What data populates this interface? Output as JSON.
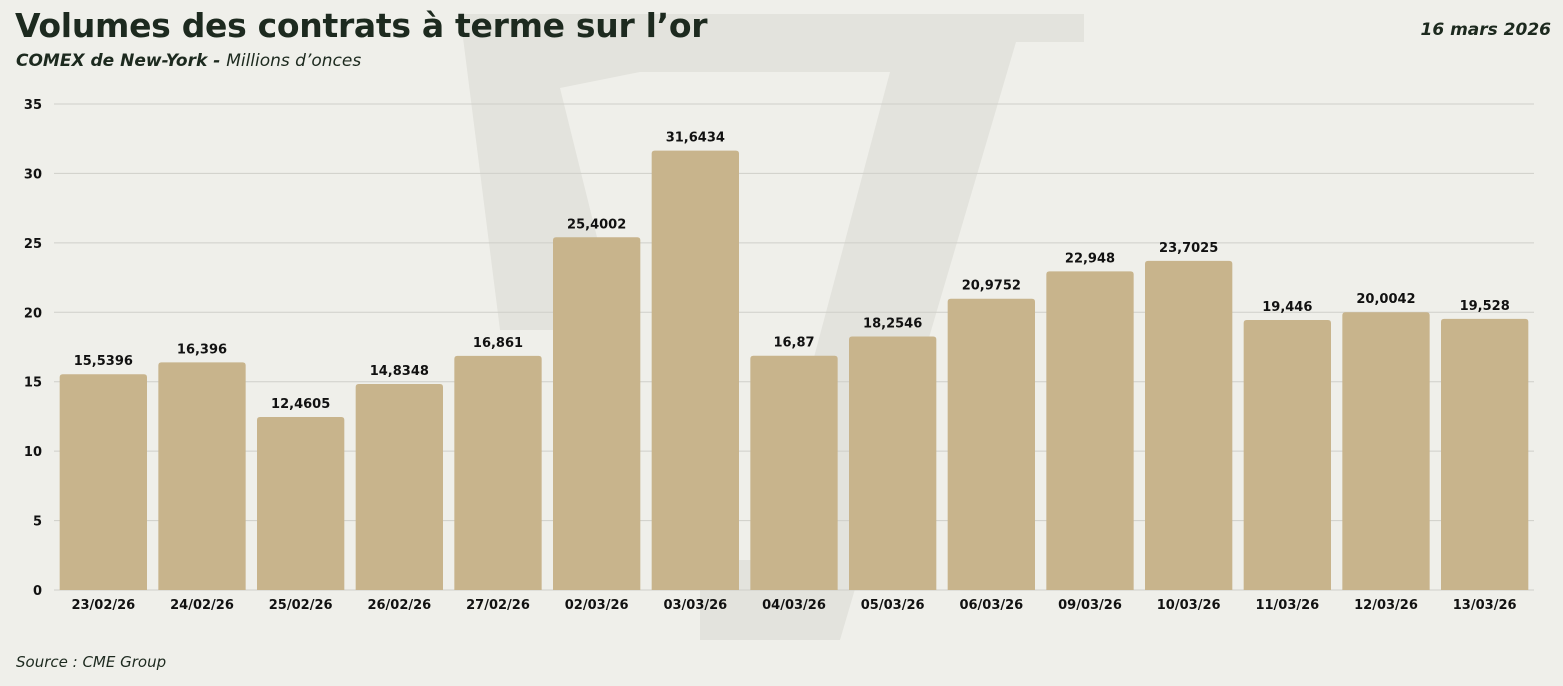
{
  "header": {
    "title": "Volumes des contrats à terme sur l’or",
    "subtitle_bold": "COMEX de New-York - ",
    "subtitle_rest": "Millions d’onces",
    "date": "16 mars 2026"
  },
  "footer": {
    "source": "Source : CME Group"
  },
  "colors": {
    "bar": "#c8b48c",
    "grid": "#cfcfc9",
    "background": "#efefea",
    "watermark": "#e3e3dd"
  },
  "chart_data": {
    "type": "bar",
    "title": "Volumes des contrats à terme sur l’or",
    "categories": [
      "23/02/26",
      "24/02/26",
      "25/02/26",
      "26/02/26",
      "27/02/26",
      "02/03/26",
      "03/03/26",
      "04/03/26",
      "05/03/26",
      "06/03/26",
      "09/03/26",
      "10/03/26",
      "11/03/26",
      "12/03/26",
      "13/03/26"
    ],
    "values": [
      15.5396,
      16.396,
      12.4605,
      14.8348,
      16.861,
      25.4002,
      31.6434,
      16.87,
      18.2546,
      20.9752,
      22.948,
      23.7025,
      19.446,
      20.0042,
      19.528
    ],
    "value_labels": [
      "15,5396",
      "16,396",
      "12,4605",
      "14,8348",
      "16,861",
      "25,4002",
      "31,6434",
      "16,87",
      "18,2546",
      "20,9752",
      "22,948",
      "23,7025",
      "19,446",
      "20,0042",
      "19,528"
    ],
    "yticks": [
      0,
      5,
      10,
      15,
      20,
      25,
      30,
      35
    ],
    "ylim": [
      0,
      35
    ],
    "xlabel": "",
    "ylabel": "",
    "grid": true,
    "legend": "none"
  }
}
